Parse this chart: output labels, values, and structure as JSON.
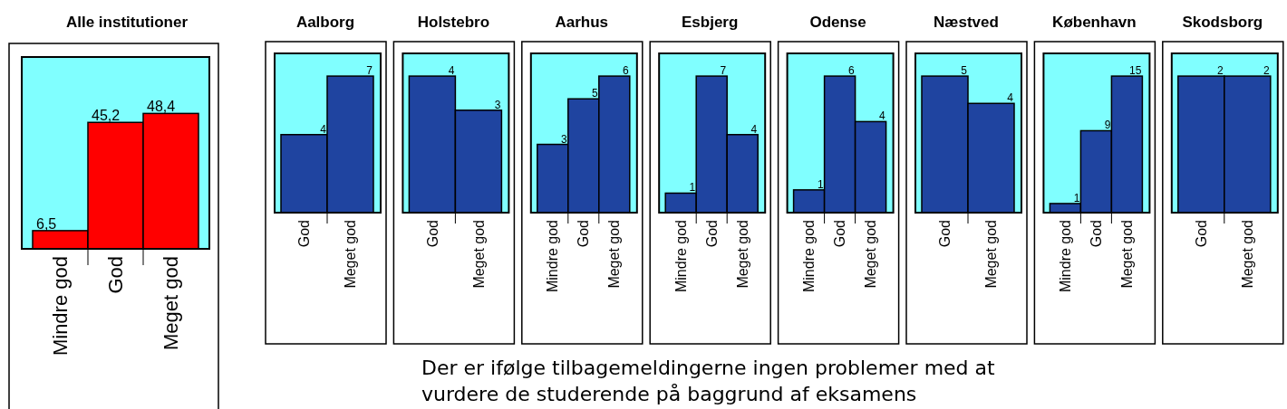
{
  "chart_data": [
    {
      "type": "bar",
      "title": "Alle institutioner",
      "categories": [
        "Mindre god",
        "God",
        "Meget god"
      ],
      "values": [
        6.5,
        45.2,
        48.4
      ],
      "value_labels": [
        "6,5",
        "45,2",
        "48,4"
      ],
      "color": "#ff0000"
    },
    {
      "type": "bar",
      "title": "Aalborg",
      "categories": [
        "God",
        "Meget god"
      ],
      "values": [
        4,
        7
      ],
      "data_labels": true,
      "color": "#1f44a0"
    },
    {
      "type": "bar",
      "title": "Holstebro",
      "categories": [
        "God",
        "Meget god"
      ],
      "values": [
        4,
        3
      ],
      "data_labels": true,
      "color": "#1f44a0"
    },
    {
      "type": "bar",
      "title": "Aarhus",
      "categories": [
        "Mindre god",
        "God",
        "Meget god"
      ],
      "values": [
        3,
        5,
        6
      ],
      "data_labels": true,
      "color": "#1f44a0"
    },
    {
      "type": "bar",
      "title": "Esbjerg",
      "categories": [
        "Mindre god",
        "God",
        "Meget god"
      ],
      "values": [
        1,
        7,
        4
      ],
      "data_labels": true,
      "color": "#1f44a0"
    },
    {
      "type": "bar",
      "title": "Odense",
      "categories": [
        "Mindre god",
        "God",
        "Meget god"
      ],
      "values": [
        1,
        6,
        4
      ],
      "data_labels": true,
      "color": "#1f44a0"
    },
    {
      "type": "bar",
      "title": "Næstved",
      "categories": [
        "God",
        "Meget god"
      ],
      "values": [
        5,
        4
      ],
      "data_labels": true,
      "color": "#1f44a0"
    },
    {
      "type": "bar",
      "title": "København",
      "categories": [
        "Mindre god",
        "God",
        "Meget god"
      ],
      "values": [
        1,
        9,
        15
      ],
      "data_labels": true,
      "color": "#1f44a0"
    },
    {
      "type": "bar",
      "title": "Skodsborg",
      "categories": [
        "God",
        "Meget god"
      ],
      "values": [
        2,
        2
      ],
      "data_labels": true,
      "color": "#1f44a0",
      "annotations": [
        "Der er ifølge tilbagemeldingerne ingen problemer med at",
        "vurdere de studerende på baggrund af eksamens"
      ]
    }
  ]
}
